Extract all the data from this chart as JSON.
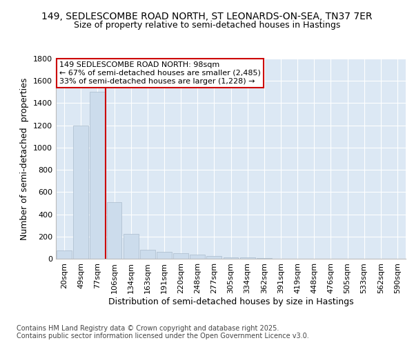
{
  "title_line1": "149, SEDLESCOMBE ROAD NORTH, ST LEONARDS-ON-SEA, TN37 7ER",
  "title_line2": "Size of property relative to semi-detached houses in Hastings",
  "xlabel": "Distribution of semi-detached houses by size in Hastings",
  "ylabel": "Number of semi-detached  properties",
  "footnote": "Contains HM Land Registry data © Crown copyright and database right 2025.\nContains public sector information licensed under the Open Government Licence v3.0.",
  "categories": [
    "20sqm",
    "49sqm",
    "77sqm",
    "106sqm",
    "134sqm",
    "163sqm",
    "191sqm",
    "220sqm",
    "248sqm",
    "277sqm",
    "305sqm",
    "334sqm",
    "362sqm",
    "391sqm",
    "419sqm",
    "448sqm",
    "476sqm",
    "505sqm",
    "533sqm",
    "562sqm",
    "590sqm"
  ],
  "values": [
    75,
    1200,
    1500,
    510,
    225,
    80,
    65,
    50,
    40,
    25,
    15,
    10,
    5,
    3,
    2,
    2,
    1,
    1,
    1,
    1,
    1
  ],
  "bar_color": "#ccdcec",
  "bar_edgecolor": "#aabbcc",
  "vline_x_index": 3,
  "annotation_text": "149 SEDLESCOMBE ROAD NORTH: 98sqm\n← 67% of semi-detached houses are smaller (2,485)\n33% of semi-detached houses are larger (1,228) →",
  "annotation_box_edgecolor": "#cc0000",
  "vline_color": "#cc0000",
  "ylim": [
    0,
    1800
  ],
  "yticks": [
    0,
    200,
    400,
    600,
    800,
    1000,
    1200,
    1400,
    1600,
    1800
  ],
  "background_color": "#dce8f4",
  "grid_color": "#ffffff",
  "title_fontsize": 10,
  "subtitle_fontsize": 9,
  "axis_label_fontsize": 9,
  "tick_fontsize": 8,
  "annot_fontsize": 8,
  "footnote_fontsize": 7
}
